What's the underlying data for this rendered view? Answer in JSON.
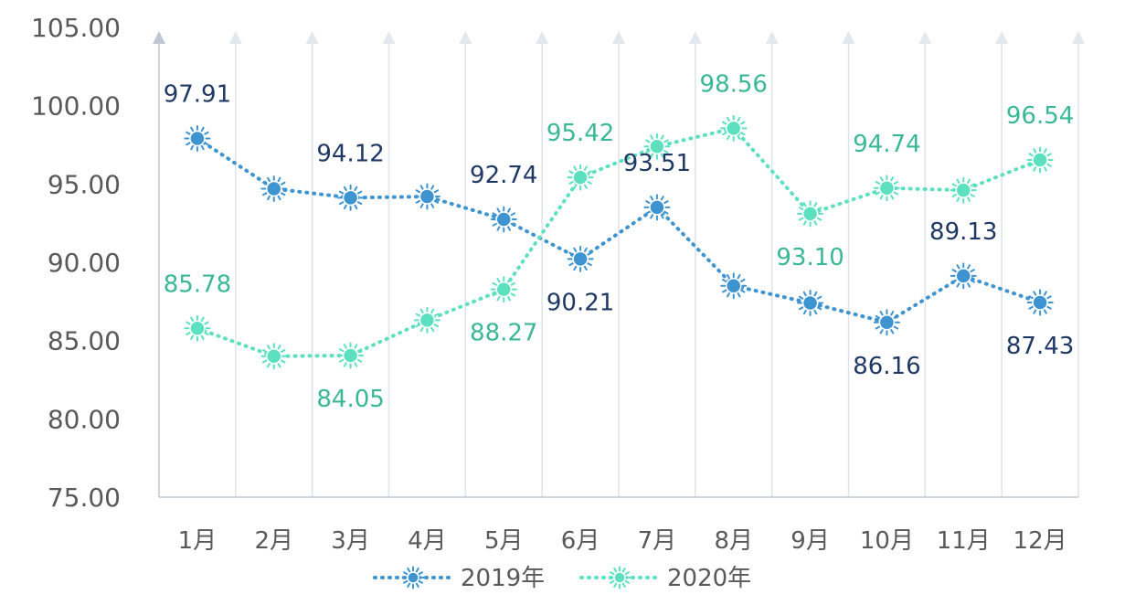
{
  "chart_data": {
    "type": "line",
    "title": "",
    "xlabel": "",
    "ylabel": "",
    "categories": [
      "1月",
      "2月",
      "3月",
      "4月",
      "5月",
      "6月",
      "7月",
      "8月",
      "9月",
      "10月",
      "11月",
      "12月"
    ],
    "ylim": [
      75,
      105
    ],
    "yticks": [
      "75.00",
      "80.00",
      "85.00",
      "90.00",
      "95.00",
      "100.00",
      "105.00"
    ],
    "grid": "vertical gridlines with arrow heads",
    "legend_position": "bottom",
    "series": [
      {
        "name": "2019年",
        "color": "#3E94D1",
        "label_color": "#1F3864",
        "values": [
          97.91,
          94.7,
          94.12,
          94.2,
          92.74,
          90.21,
          93.51,
          88.5,
          87.4,
          86.16,
          89.13,
          87.43
        ],
        "labels": [
          "97.91",
          "",
          "94.12",
          "",
          "92.74",
          "90.21",
          "93.51",
          "",
          "",
          "86.16",
          "89.13",
          "87.43"
        ],
        "label_pos": [
          "above",
          "",
          "above",
          "",
          "above",
          "below",
          "above",
          "",
          "",
          "below",
          "above",
          "below"
        ]
      },
      {
        "name": "2020年",
        "color": "#5CE0C0",
        "label_color": "#3AB896",
        "values": [
          85.78,
          84.0,
          84.05,
          86.3,
          88.27,
          95.42,
          97.4,
          98.56,
          93.1,
          94.74,
          94.6,
          96.54
        ],
        "labels": [
          "85.78",
          "",
          "84.05",
          "",
          "88.27",
          "95.42",
          "",
          "98.56",
          "93.10",
          "94.74",
          "",
          "96.54"
        ],
        "label_pos": [
          "above",
          "",
          "below",
          "",
          "below",
          "above",
          "",
          "above",
          "below",
          "above",
          "",
          "above"
        ]
      }
    ]
  }
}
